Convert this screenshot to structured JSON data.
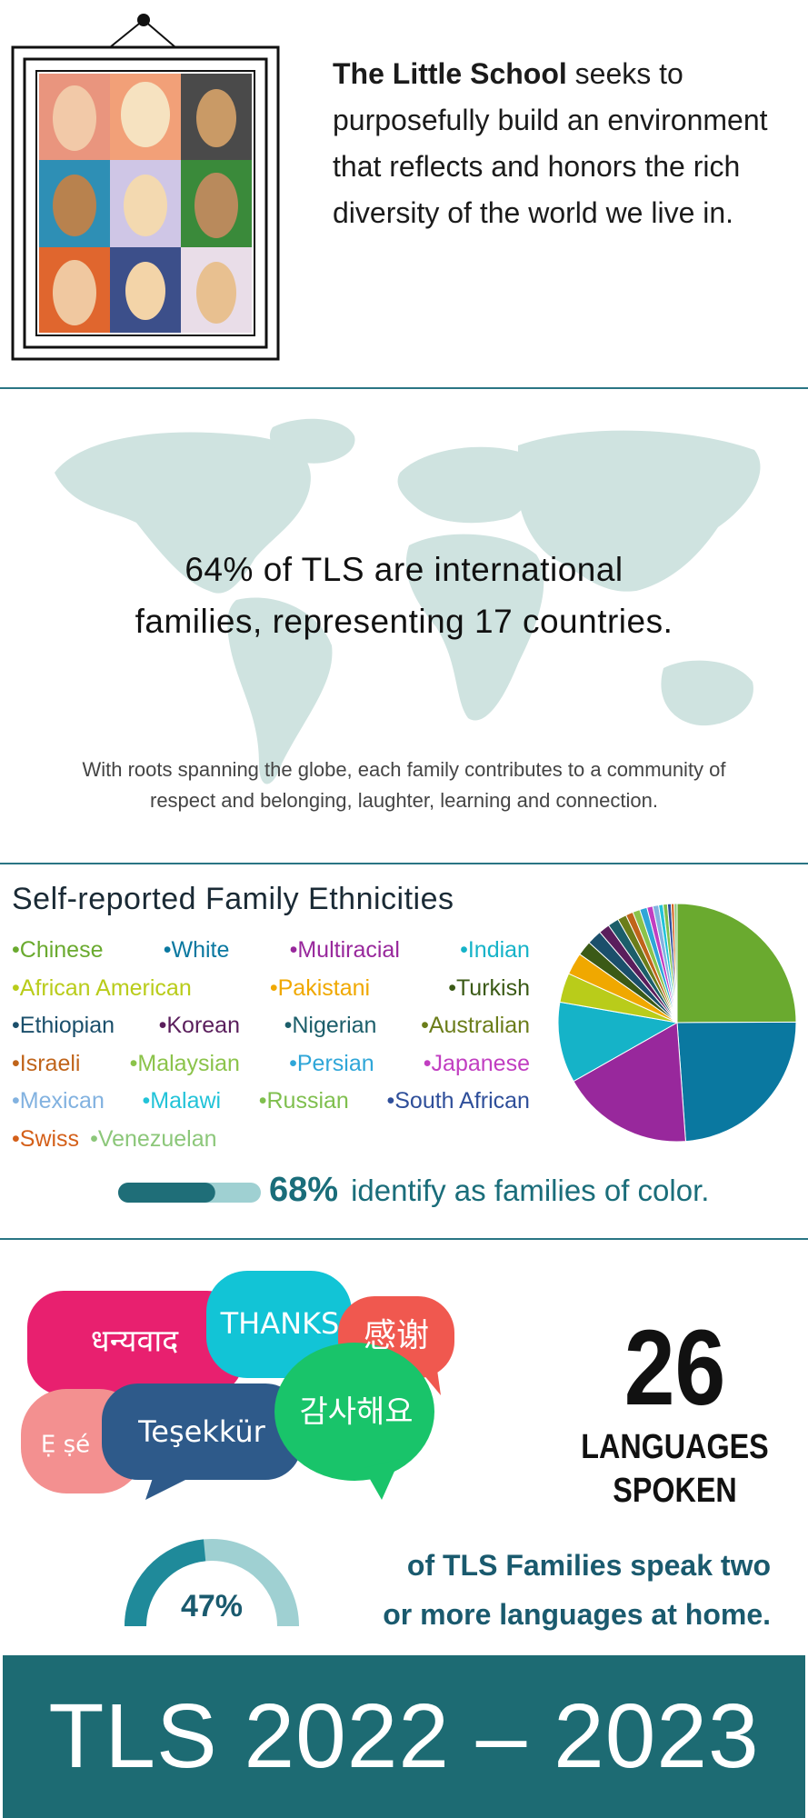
{
  "intro": {
    "lead": "The Little School",
    "text": "seeks to purposefully build an environment that reflects and honors the rich diversity of the world we live in."
  },
  "international": {
    "headline_lines": [
      "64% of TLS are international",
      "families, representing 17 countries."
    ],
    "body_lines": [
      "With roots spanning the globe, each family contributes to a community of",
      "respect and belonging, laughter, learning and connection."
    ]
  },
  "ethnicities": {
    "title": "Self-reported Family Ethnicities",
    "chart_data": {
      "type": "pie",
      "categories": [
        "Chinese",
        "White",
        "Multiracial",
        "Indian",
        "African American",
        "Pakistani",
        "Turkish",
        "Ethiopian",
        "Korean",
        "Nigerian",
        "Australian",
        "Israeli",
        "Malaysian",
        "Persian",
        "Japanese",
        "Mexican",
        "Malawi",
        "Russian",
        "South African",
        "Swiss",
        "Venezuelan"
      ],
      "values": [
        25,
        24,
        18,
        11,
        4,
        3,
        2,
        2,
        1.5,
        1.5,
        1.2,
        1,
        1,
        1,
        0.8,
        0.8,
        0.6,
        0.6,
        0.5,
        0.4,
        0.4
      ],
      "colors": [
        "#6aaa2f",
        "#0a78a0",
        "#98289c",
        "#15b3c8",
        "#b9cc1a",
        "#f0a800",
        "#3b5a16",
        "#1b4f6b",
        "#5a1e5c",
        "#1c5e6a",
        "#6b7d1a",
        "#c0641a",
        "#8bc34a",
        "#2fa6d8",
        "#c13ec1",
        "#82b2e0",
        "#22c3d8",
        "#7fbf4e",
        "#2f4f9a",
        "#d4601a",
        "#8cc77a"
      ]
    },
    "color_share": {
      "value": 68,
      "label": "68%"
    },
    "color_text": "identify as families of color."
  },
  "languages": {
    "bubbles": [
      "धन्यवाद",
      "THANKS",
      "感谢",
      "Ẹ ṣé",
      "Teşekkür",
      "감사해요"
    ],
    "count": 26,
    "count_lines": [
      "LANGUAGES",
      "SPOKEN"
    ],
    "multilingual": {
      "value": 47,
      "label": "47%"
    },
    "multilingual_lines": [
      "of TLS Families speak two",
      "or more languages at home."
    ]
  },
  "footer": {
    "title": "TLS 2022 – 2023"
  }
}
